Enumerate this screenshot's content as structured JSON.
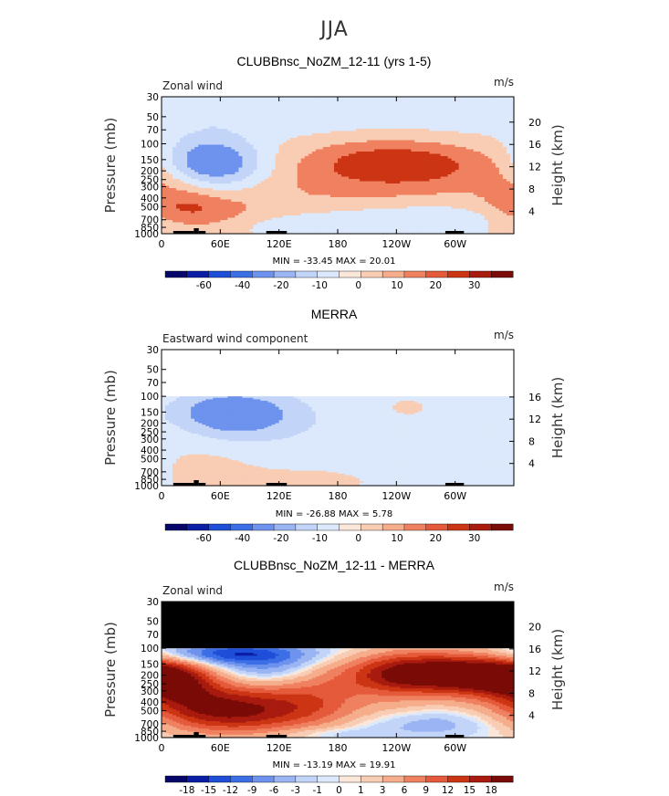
{
  "page": {
    "title": "JJA"
  },
  "chart_data": [
    {
      "type": "heatmap",
      "title": "CLUBBnsc_NoZM_12-11 (yrs 1-5)",
      "left_label": "Zonal wind",
      "units": "m/s",
      "xlabel": "",
      "ylabel": "Pressure (mb)",
      "y2label": "Height (km)",
      "x_ticks": [
        "0",
        "60E",
        "120E",
        "180",
        "120W",
        "60W"
      ],
      "x_tick_values": [
        0,
        60,
        120,
        180,
        240,
        300
      ],
      "x_range": [
        0,
        360
      ],
      "y_ticks": [
        "30",
        "50",
        "70",
        "100",
        "150",
        "200",
        "250",
        "300",
        "400",
        "500",
        "700",
        "850",
        "1000"
      ],
      "y_tick_values": [
        30,
        50,
        70,
        100,
        150,
        200,
        250,
        300,
        400,
        500,
        700,
        850,
        1000
      ],
      "y_range": [
        30,
        1000
      ],
      "height_ticks": [
        "4",
        "8",
        "12",
        "16",
        "20"
      ],
      "height_tick_values": [
        4,
        8,
        12,
        16,
        20
      ],
      "data_top": 30,
      "stats": "MIN = -33.45   MAX =  20.01",
      "min": -33.45,
      "max": 20.01,
      "colorbar_labels": [
        "-60",
        "-40",
        "-20",
        "-10",
        "0",
        "10",
        "20",
        "30"
      ],
      "colorbar_colors": [
        "#07076b",
        "#0a1fa6",
        "#1f4ed8",
        "#3c6fe6",
        "#6d93ee",
        "#9bb4f3",
        "#c2d4f8",
        "#dce8fb",
        "#fbe7da",
        "#f8cdb4",
        "#f5ad8b",
        "#ef8160",
        "#e55a3a",
        "#cc3514",
        "#a81b0e",
        "#7a0b07"
      ],
      "features": [
        {
          "lon": 135,
          "p": 270,
          "amp": 11,
          "slon": 160,
          "sp": 230
        },
        {
          "lon": 45,
          "p": 150,
          "amp": -32,
          "slon": 38,
          "sp": 80
        },
        {
          "lon": 60,
          "p": 220,
          "amp": -14,
          "slon": 45,
          "sp": 110
        },
        {
          "lon": 255,
          "p": 170,
          "amp": 19,
          "slon": 65,
          "sp": 90
        },
        {
          "lon": 215,
          "p": 130,
          "amp": 6,
          "slon": 50,
          "sp": 60
        },
        {
          "lon": 5,
          "p": 200,
          "amp": 9,
          "slon": 30,
          "sp": 150
        },
        {
          "lon": 40,
          "p": 600,
          "amp": 12,
          "slon": 40,
          "sp": 200
        },
        {
          "lon": 20,
          "p": 450,
          "amp": 8,
          "slon": 35,
          "sp": 180
        },
        {
          "lon": 200,
          "p": 700,
          "amp": -6,
          "slon": 70,
          "sp": 200
        },
        {
          "lon": 290,
          "p": 650,
          "amp": -7,
          "slon": 60,
          "sp": 180
        },
        {
          "lon": 120,
          "p": 800,
          "amp": -4,
          "slon": 40,
          "sp": 150
        },
        {
          "lon": 180,
          "p": 50,
          "amp": -5,
          "slon": 180,
          "sp": 30
        },
        {
          "lon": 50,
          "p": 40,
          "amp": -6,
          "slon": 60,
          "sp": 20
        }
      ]
    },
    {
      "type": "heatmap",
      "title": "MERRA",
      "left_label": "Eastward wind component",
      "units": "m/s",
      "xlabel": "",
      "ylabel": "Pressure (mb)",
      "y2label": "Height (km)",
      "x_ticks": [
        "0",
        "60E",
        "120E",
        "180",
        "120W",
        "60W"
      ],
      "x_tick_values": [
        0,
        60,
        120,
        180,
        240,
        300
      ],
      "x_range": [
        0,
        360
      ],
      "y_ticks": [
        "30",
        "50",
        "70",
        "100",
        "150",
        "200",
        "250",
        "300",
        "400",
        "500",
        "700",
        "850",
        "1000"
      ],
      "y_tick_values": [
        30,
        50,
        70,
        100,
        150,
        200,
        250,
        300,
        400,
        500,
        700,
        850,
        1000
      ],
      "y_range": [
        30,
        1000
      ],
      "height_ticks": [
        "4",
        "8",
        "12",
        "16"
      ],
      "height_tick_values": [
        4,
        8,
        12,
        16
      ],
      "data_top": 100,
      "stats": "MIN = -26.88   MAX =    5.78",
      "min": -26.88,
      "max": 5.78,
      "colorbar_labels": [
        "-60",
        "-40",
        "-20",
        "-10",
        "0",
        "10",
        "20",
        "30"
      ],
      "colorbar_colors": [
        "#07076b",
        "#0a1fa6",
        "#1f4ed8",
        "#3c6fe6",
        "#6d93ee",
        "#9bb4f3",
        "#c2d4f8",
        "#dce8fb",
        "#fbe7da",
        "#f8cdb4",
        "#f5ad8b",
        "#ef8160",
        "#e55a3a",
        "#cc3514",
        "#a81b0e",
        "#7a0b07"
      ],
      "features": [
        {
          "lon": 70,
          "p": 150,
          "amp": -22,
          "slon": 40,
          "sp": 70
        },
        {
          "lon": 90,
          "p": 180,
          "amp": -10,
          "slon": 60,
          "sp": 120
        },
        {
          "lon": 200,
          "p": 200,
          "amp": -4,
          "slon": 150,
          "sp": 250
        },
        {
          "lon": 240,
          "p": 150,
          "amp": 4,
          "slon": 50,
          "sp": 80
        },
        {
          "lon": 45,
          "p": 550,
          "amp": 4,
          "slon": 35,
          "sp": 250
        },
        {
          "lon": 150,
          "p": 800,
          "amp": 2,
          "slon": 60,
          "sp": 200
        },
        {
          "lon": 20,
          "p": 250,
          "amp": 2,
          "slon": 25,
          "sp": 80
        },
        {
          "lon": 300,
          "p": 600,
          "amp": -3,
          "slon": 60,
          "sp": 250
        }
      ]
    },
    {
      "type": "heatmap",
      "title": "CLUBBnsc_NoZM_12-11 - MERRA",
      "left_label": "Zonal wind",
      "units": "m/s",
      "xlabel": "",
      "ylabel": "Pressure (mb)",
      "y2label": "Height (km)",
      "x_ticks": [
        "0",
        "60E",
        "120E",
        "180",
        "120W",
        "60W"
      ],
      "x_tick_values": [
        0,
        60,
        120,
        180,
        240,
        300
      ],
      "x_range": [
        0,
        360
      ],
      "y_ticks": [
        "30",
        "50",
        "70",
        "100",
        "150",
        "200",
        "250",
        "300",
        "400",
        "500",
        "700",
        "850",
        "1000"
      ],
      "y_tick_values": [
        30,
        50,
        70,
        100,
        150,
        200,
        250,
        300,
        400,
        500,
        700,
        850,
        1000
      ],
      "y_range": [
        30,
        1000
      ],
      "height_ticks": [
        "4",
        "8",
        "12",
        "16",
        "20"
      ],
      "height_tick_values": [
        4,
        8,
        12,
        16,
        20
      ],
      "data_top": 100,
      "missing_above": 100,
      "stats": "MIN = -13.19   MAX =  19.91",
      "min": -13.19,
      "max": 19.91,
      "colorbar_labels": [
        "-18",
        "-15",
        "-12",
        "-9",
        "-6",
        "-3",
        "-1",
        "0",
        "1",
        "3",
        "6",
        "9",
        "12",
        "15",
        "18"
      ],
      "colorbar_colors": [
        "#07076b",
        "#0a1fa6",
        "#1f4ed8",
        "#3c6fe6",
        "#6d93ee",
        "#9bb4f3",
        "#c2d4f8",
        "#dce8fb",
        "#fbe7da",
        "#f8cdb4",
        "#f5ad8b",
        "#ef8160",
        "#e55a3a",
        "#cc3514",
        "#a81b0e",
        "#7a0b07"
      ],
      "features": [
        {
          "lon": 250,
          "p": 190,
          "amp": 20,
          "slon": 55,
          "sp": 90
        },
        {
          "lon": 330,
          "p": 200,
          "amp": 16,
          "slon": 40,
          "sp": 90
        },
        {
          "lon": 15,
          "p": 230,
          "amp": 13,
          "slon": 30,
          "sp": 120
        },
        {
          "lon": 50,
          "p": 450,
          "amp": 11,
          "slon": 45,
          "sp": 250
        },
        {
          "lon": 140,
          "p": 350,
          "amp": 10,
          "slon": 60,
          "sp": 200
        },
        {
          "lon": 100,
          "p": 600,
          "amp": 8,
          "slon": 80,
          "sp": 250
        },
        {
          "lon": 65,
          "p": 115,
          "amp": -13,
          "slon": 55,
          "sp": 25
        },
        {
          "lon": 110,
          "p": 170,
          "amp": -8,
          "slon": 40,
          "sp": 80
        },
        {
          "lon": 200,
          "p": 220,
          "amp": -3,
          "slon": 25,
          "sp": 200
        },
        {
          "lon": 270,
          "p": 700,
          "amp": -5,
          "slon": 70,
          "sp": 200
        },
        {
          "lon": 170,
          "p": 900,
          "amp": -3,
          "slon": 40,
          "sp": 120
        }
      ]
    }
  ]
}
